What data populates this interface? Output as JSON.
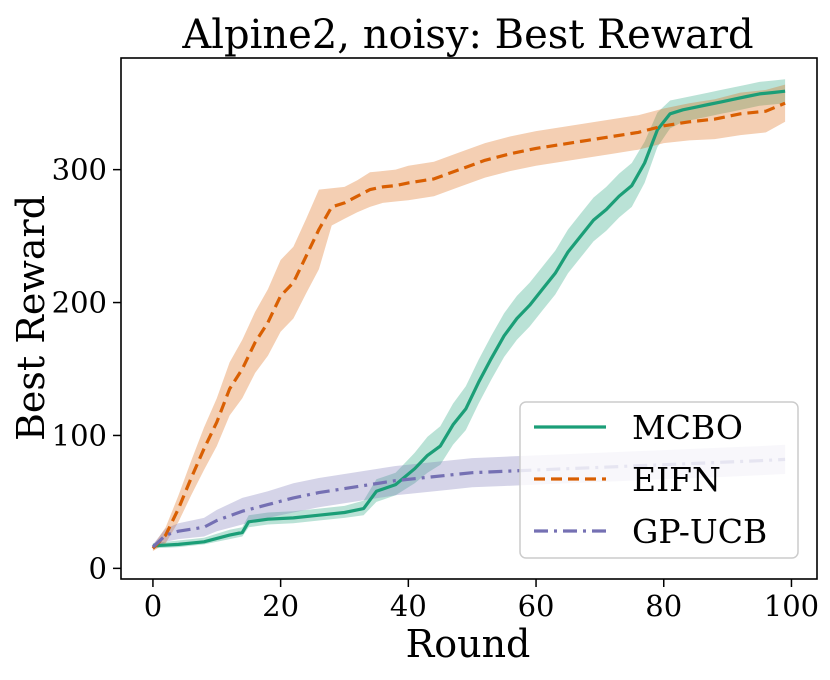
{
  "chart_data": {
    "type": "line",
    "title": "Alpine2, noisy: Best Reward",
    "xlabel": "Round",
    "ylabel": "Best Reward",
    "xlim": [
      -5,
      104
    ],
    "ylim": [
      -8,
      384
    ],
    "xticks": [
      0,
      20,
      40,
      60,
      80,
      100
    ],
    "yticks": [
      0,
      100,
      200,
      300
    ],
    "grid": false,
    "legend_position": "lower-right",
    "series": [
      {
        "name": "MCBO",
        "color": "#1b9e77",
        "style": "solid",
        "x": [
          0,
          4,
          8,
          12,
          14,
          15,
          18,
          22,
          26,
          30,
          33,
          35,
          38,
          41,
          43,
          45,
          47,
          49,
          51,
          53,
          55,
          57,
          59,
          61,
          63,
          65,
          67,
          69,
          71,
          73,
          75,
          77,
          79,
          81,
          83,
          85,
          87,
          89,
          91,
          93,
          95,
          97,
          99
        ],
        "y": [
          17,
          18,
          20,
          25,
          27,
          35,
          37,
          38,
          40,
          42,
          45,
          58,
          63,
          75,
          85,
          92,
          108,
          120,
          140,
          158,
          175,
          188,
          198,
          210,
          222,
          238,
          250,
          262,
          270,
          280,
          288,
          305,
          330,
          342,
          345,
          347,
          349,
          351,
          353,
          355,
          357,
          358,
          359
        ],
        "band_lower": [
          15,
          16,
          18,
          22,
          24,
          31,
          33,
          34,
          36,
          38,
          40,
          50,
          55,
          64,
          72,
          78,
          93,
          104,
          124,
          142,
          159,
          172,
          182,
          194,
          206,
          222,
          234,
          246,
          254,
          264,
          272,
          290,
          317,
          331,
          336,
          338,
          340,
          342,
          344,
          346,
          348,
          349,
          350
        ],
        "band_upper": [
          19,
          21,
          23,
          29,
          31,
          40,
          42,
          43,
          45,
          47,
          51,
          67,
          72,
          87,
          99,
          107,
          124,
          137,
          157,
          175,
          192,
          205,
          215,
          227,
          239,
          255,
          267,
          279,
          287,
          297,
          305,
          321,
          343,
          352,
          354,
          356,
          358,
          360,
          362,
          364,
          366,
          367,
          368
        ]
      },
      {
        "name": "EIFN",
        "color": "#d95f02",
        "style": "dashed",
        "x": [
          0,
          2,
          4,
          6,
          8,
          10,
          12,
          14,
          16,
          18,
          20,
          22,
          24,
          26,
          28,
          30,
          32,
          34,
          36,
          38,
          40,
          44,
          48,
          52,
          56,
          60,
          64,
          68,
          72,
          76,
          80,
          84,
          88,
          92,
          96,
          99
        ],
        "y": [
          15,
          25,
          45,
          68,
          90,
          110,
          135,
          150,
          170,
          185,
          205,
          215,
          235,
          255,
          272,
          275,
          280,
          285,
          287,
          288,
          290,
          293,
          300,
          307,
          312,
          316,
          319,
          322,
          325,
          328,
          333,
          336,
          338,
          342,
          344,
          350
        ],
        "band_lower": [
          13,
          19,
          35,
          55,
          74,
          92,
          115,
          128,
          147,
          160,
          178,
          188,
          207,
          225,
          258,
          263,
          268,
          272,
          275,
          276,
          277,
          280,
          287,
          294,
          299,
          303,
          306,
          309,
          312,
          315,
          320,
          322,
          323,
          326,
          328,
          336
        ],
        "band_upper": [
          17,
          31,
          55,
          81,
          106,
          128,
          155,
          172,
          193,
          210,
          232,
          242,
          263,
          285,
          286,
          287,
          292,
          298,
          299,
          300,
          303,
          306,
          313,
          320,
          325,
          329,
          332,
          335,
          338,
          341,
          346,
          350,
          353,
          358,
          360,
          364
        ]
      },
      {
        "name": "GP-UCB",
        "color": "#7570b3",
        "style": "dashdot",
        "x": [
          0,
          2,
          4,
          8,
          10,
          14,
          18,
          22,
          26,
          30,
          34,
          38,
          42,
          46,
          50,
          55,
          60,
          65,
          70,
          75,
          80,
          85,
          90,
          95,
          99
        ],
        "y": [
          16,
          25,
          28,
          31,
          36,
          43,
          48,
          53,
          57,
          60,
          63,
          66,
          68,
          70,
          72,
          73,
          74,
          75,
          76,
          77,
          78,
          79,
          80,
          81,
          82
        ],
        "band_lower": [
          14,
          20,
          22,
          24,
          28,
          33,
          38,
          42,
          46,
          49,
          52,
          55,
          57,
          59,
          61,
          62,
          63,
          64,
          65,
          66,
          67,
          68,
          69,
          70,
          71
        ],
        "band_upper": [
          18,
          30,
          34,
          38,
          44,
          53,
          58,
          64,
          68,
          71,
          74,
          77,
          79,
          81,
          83,
          84,
          85,
          86,
          87,
          88,
          89,
          90,
          91,
          92,
          93
        ]
      }
    ]
  }
}
